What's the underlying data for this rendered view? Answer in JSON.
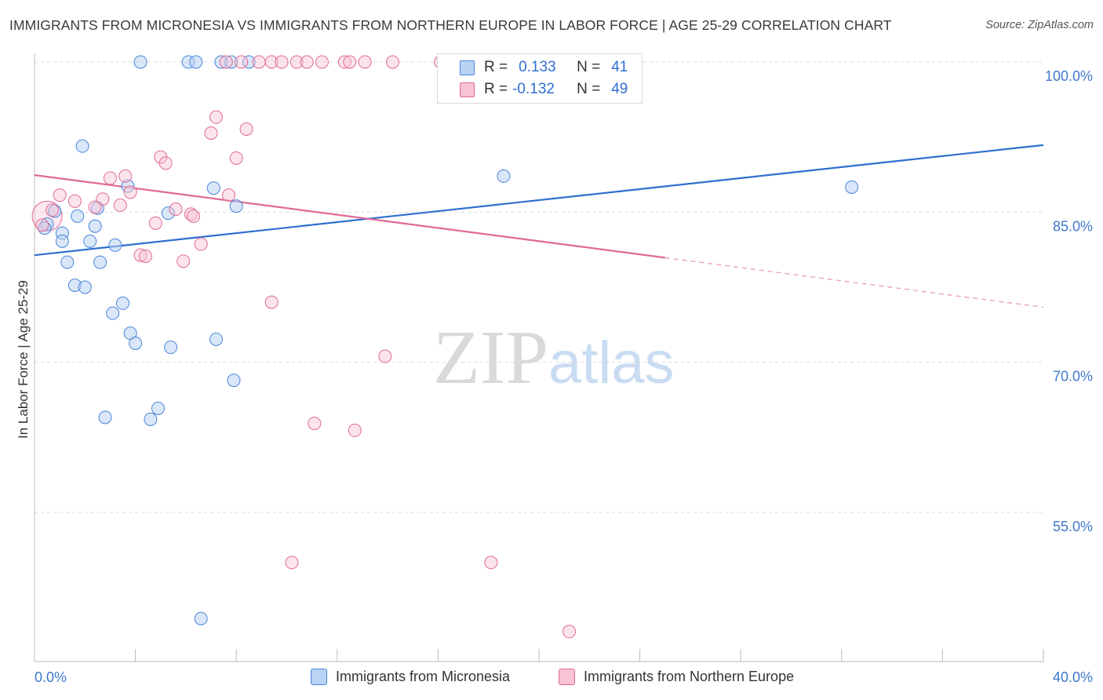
{
  "title": "IMMIGRANTS FROM MICRONESIA VS IMMIGRANTS FROM NORTHERN EUROPE IN LABOR FORCE | AGE 25-29 CORRELATION CHART",
  "source": "Source: ZipAtlas.com",
  "watermark": {
    "zip": "ZIP",
    "atlas": "atlas"
  },
  "legend": {
    "rows": [
      {
        "r_label": "R =",
        "r_value": "0.133",
        "n_label": "N =",
        "n_value": "41"
      },
      {
        "r_label": "R =",
        "r_value": "-0.132",
        "n_label": "N =",
        "n_value": "49"
      }
    ]
  },
  "chart_data": {
    "type": "scatter",
    "ylabel": "In Labor Force | Age 25-29",
    "xlim": [
      0,
      40
    ],
    "ylim": [
      40,
      102
    ],
    "x_tick_labels": {
      "left": "0.0%",
      "right": "40.0%"
    },
    "y_ticks": [
      {
        "value": 100,
        "label": "100.0%"
      },
      {
        "value": 85,
        "label": "85.0%"
      },
      {
        "value": 70,
        "label": "70.0%"
      },
      {
        "value": 55,
        "label": "55.0%"
      }
    ],
    "grid": true,
    "colors": {
      "blue": "#4a85d8",
      "blue_fill": "#b9d3f4",
      "pink": "#e06a95",
      "pink_fill": "#f8c3d4",
      "axis_text": "#3f78cc"
    },
    "series": [
      {
        "name": "Immigrants from Micronesia",
        "color": "#2f6fd0",
        "trend": {
          "x0": 0,
          "y0": 80.7,
          "x1": 40,
          "y1": 91.7,
          "solid_until": 40
        },
        "points": [
          [
            4.2,
            100
          ],
          [
            6.1,
            100
          ],
          [
            6.4,
            100
          ],
          [
            7.4,
            100
          ],
          [
            7.8,
            100
          ],
          [
            8.5,
            100
          ],
          [
            1.9,
            91.6
          ],
          [
            3.7,
            87.6
          ],
          [
            7.1,
            87.4
          ],
          [
            8.0,
            85.6
          ],
          [
            18.6,
            88.6
          ],
          [
            32.4,
            87.5
          ],
          [
            0.8,
            85.1
          ],
          [
            0.5,
            83.8
          ],
          [
            0.4,
            83.4
          ],
          [
            1.1,
            82.9
          ],
          [
            1.7,
            84.6
          ],
          [
            2.5,
            85.4
          ],
          [
            5.3,
            84.9
          ],
          [
            1.1,
            82.1
          ],
          [
            2.2,
            82.1
          ],
          [
            2.4,
            83.6
          ],
          [
            3.2,
            81.7
          ],
          [
            1.3,
            80.0
          ],
          [
            2.6,
            80.0
          ],
          [
            1.6,
            77.7
          ],
          [
            2.0,
            77.5
          ],
          [
            3.5,
            75.9
          ],
          [
            3.1,
            74.9
          ],
          [
            3.8,
            72.9
          ],
          [
            4.0,
            71.9
          ],
          [
            5.4,
            71.5
          ],
          [
            7.2,
            72.3
          ],
          [
            7.9,
            68.2
          ],
          [
            4.9,
            65.4
          ],
          [
            2.8,
            64.5
          ],
          [
            4.6,
            64.3
          ],
          [
            6.6,
            44.4
          ]
        ]
      },
      {
        "name": "Immigrants from Northern Europe",
        "color": "#e06a95",
        "trend": {
          "x0": 0,
          "y0": 88.7,
          "x1": 40,
          "y1": 75.5,
          "solid_until": 25
        },
        "points": [
          [
            7.6,
            100
          ],
          [
            8.2,
            100
          ],
          [
            8.9,
            100
          ],
          [
            9.4,
            100
          ],
          [
            9.8,
            100
          ],
          [
            10.4,
            100
          ],
          [
            10.8,
            100
          ],
          [
            11.4,
            100
          ],
          [
            12.3,
            100
          ],
          [
            12.5,
            100
          ],
          [
            13.1,
            100
          ],
          [
            14.2,
            100
          ],
          [
            16.1,
            100
          ],
          [
            16.4,
            100
          ],
          [
            17.5,
            100
          ],
          [
            7.2,
            94.5
          ],
          [
            7.0,
            92.9
          ],
          [
            8.4,
            93.3
          ],
          [
            5.0,
            90.5
          ],
          [
            5.2,
            89.9
          ],
          [
            8.0,
            90.4
          ],
          [
            3.6,
            88.6
          ],
          [
            3.0,
            88.4
          ],
          [
            3.8,
            87.0
          ],
          [
            7.7,
            86.7
          ],
          [
            1.0,
            86.7
          ],
          [
            1.6,
            86.1
          ],
          [
            2.7,
            86.3
          ],
          [
            3.4,
            85.7
          ],
          [
            0.7,
            85.2
          ],
          [
            2.4,
            85.5
          ],
          [
            5.6,
            85.3
          ],
          [
            6.2,
            84.8
          ],
          [
            6.3,
            84.6
          ],
          [
            4.8,
            83.9
          ],
          [
            0.3,
            83.7
          ],
          [
            6.6,
            81.8
          ],
          [
            4.2,
            80.7
          ],
          [
            4.4,
            80.6
          ],
          [
            5.9,
            80.1
          ],
          [
            9.4,
            76.0
          ],
          [
            13.9,
            70.6
          ],
          [
            11.1,
            63.9
          ],
          [
            12.7,
            63.2
          ],
          [
            10.2,
            50.0
          ],
          [
            18.1,
            50.0
          ],
          [
            21.2,
            43.1
          ]
        ]
      }
    ]
  }
}
